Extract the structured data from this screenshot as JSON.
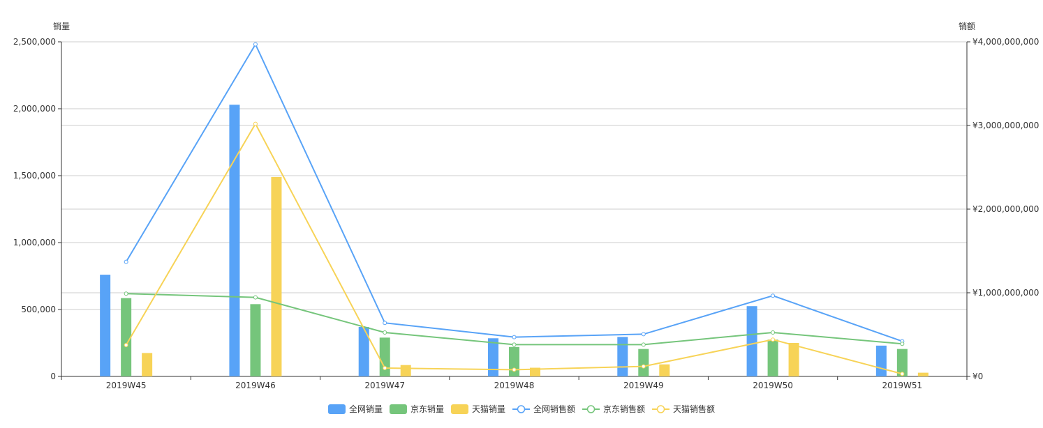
{
  "chart_data": {
    "type": "bar",
    "categories": [
      "2019W45",
      "2019W46",
      "2019W47",
      "2019W48",
      "2019W49",
      "2019W50",
      "2019W51"
    ],
    "left_axis": {
      "label": "销量",
      "range": [
        0,
        2500000
      ],
      "ticks": [
        "0",
        "500,000",
        "1,000,000",
        "1,500,000",
        "2,000,000",
        "2,500,000"
      ]
    },
    "right_axis": {
      "label": "销额",
      "range": [
        0,
        4000000000
      ],
      "ticks": [
        "¥0",
        "¥1,000,000,000",
        "¥2,000,000,000",
        "¥3,000,000,000",
        "¥4,000,000,000"
      ]
    },
    "grid": true,
    "legend_position": "bottom-center",
    "series": [
      {
        "name": "全网销量",
        "kind": "bar",
        "axis": "left",
        "color": "#58a3f7",
        "values": [
          760000,
          2030000,
          370000,
          285000,
          295000,
          525000,
          230000
        ]
      },
      {
        "name": "京东销量",
        "kind": "bar",
        "axis": "left",
        "color": "#75c57b",
        "values": [
          585000,
          540000,
          290000,
          220000,
          205000,
          275000,
          205000
        ]
      },
      {
        "name": "天猫销量",
        "kind": "bar",
        "axis": "left",
        "color": "#f7d357",
        "values": [
          175000,
          1490000,
          85000,
          65000,
          90000,
          250000,
          28000
        ]
      },
      {
        "name": "全网销售额",
        "kind": "line",
        "axis": "right",
        "color": "#58a3f7",
        "values": [
          1370000000,
          3970000000,
          640000000,
          470000000,
          505000000,
          965000000,
          420000000
        ]
      },
      {
        "name": "京东销售额",
        "kind": "line",
        "axis": "right",
        "color": "#75c57b",
        "values": [
          990000000,
          945000000,
          525000000,
          380000000,
          380000000,
          525000000,
          390000000
        ]
      },
      {
        "name": "天猫销售额",
        "kind": "line",
        "axis": "right",
        "color": "#f7d357",
        "values": [
          375000000,
          3020000000,
          100000000,
          80000000,
          120000000,
          440000000,
          30000000
        ]
      }
    ]
  }
}
